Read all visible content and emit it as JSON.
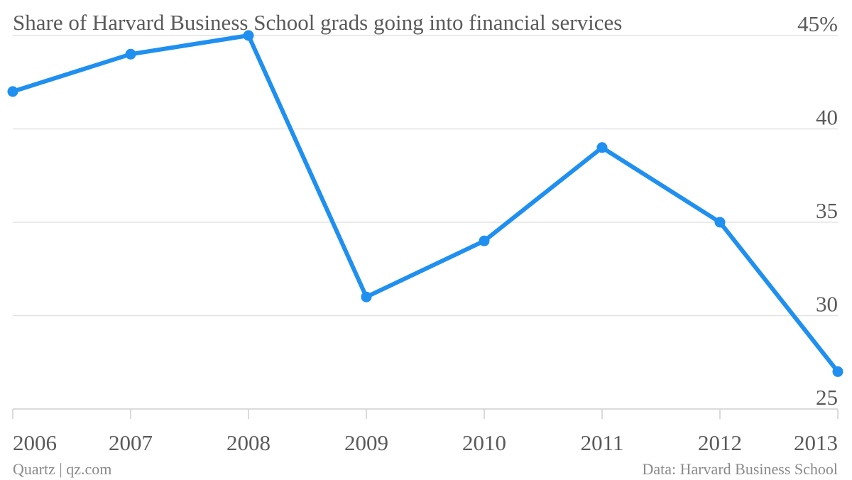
{
  "chart_data": {
    "type": "line",
    "title": "Share of Harvard Business School grads going into financial services",
    "x": [
      2006,
      2007,
      2008,
      2009,
      2010,
      2011,
      2012,
      2013
    ],
    "series": [
      {
        "name": "Share of HBS grads in financial services",
        "color": "#1f8ff0",
        "values": [
          42,
          44,
          45,
          31,
          34,
          39,
          35,
          27
        ]
      }
    ],
    "xlim": [
      2006,
      2013
    ],
    "xticks": [
      2006,
      2007,
      2008,
      2009,
      2010,
      2011,
      2012,
      2013
    ],
    "ylim": [
      25,
      45
    ],
    "yticks": [
      25,
      30,
      35,
      40,
      {
        "value": 45,
        "label": "45%"
      }
    ],
    "grid": true,
    "source": "Data: Harvard Business School",
    "credit": "Quartz | qz.com"
  }
}
